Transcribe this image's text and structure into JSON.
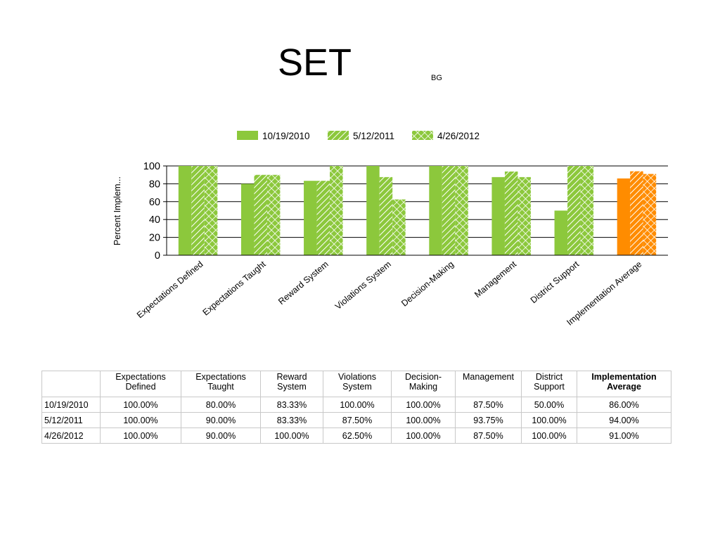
{
  "slide": {
    "title": "SET",
    "subtitle": "BG"
  },
  "chart_data": {
    "type": "bar",
    "ylabel": "Percent Implem...",
    "ylim": [
      0,
      100
    ],
    "yticks": [
      0,
      20,
      40,
      60,
      80,
      100
    ],
    "grid": true,
    "legend": "top",
    "categories": [
      "Expectations Defined",
      "Expectations Taught",
      "Reward System",
      "Violations System",
      "Decision-Making",
      "Management",
      "District Support",
      "Implementation Average"
    ],
    "series": [
      {
        "name": "10/19/2010",
        "values": [
          100,
          80,
          83.33,
          100,
          100,
          87.5,
          50,
          86
        ],
        "pattern": "solid"
      },
      {
        "name": "5/12/2011",
        "values": [
          100,
          90,
          83.33,
          87.5,
          100,
          93.75,
          100,
          94
        ],
        "pattern": "diagonal"
      },
      {
        "name": "4/26/2012",
        "values": [
          100,
          90,
          100,
          62.5,
          100,
          87.5,
          100,
          91
        ],
        "pattern": "crosshatch"
      }
    ],
    "colors": {
      "main": "#8cc83c",
      "highlight": "#ff8c00"
    },
    "highlight_category": "Implementation Average"
  },
  "table": {
    "headers": [
      {
        "l1": "Expectations",
        "l2": "Defined",
        "bold": false
      },
      {
        "l1": "Expectations",
        "l2": "Taught",
        "bold": false
      },
      {
        "l1": "Reward",
        "l2": "System",
        "bold": false
      },
      {
        "l1": "Violations",
        "l2": "System",
        "bold": false
      },
      {
        "l1": "Decision-",
        "l2": "Making",
        "bold": false
      },
      {
        "l1": "Management",
        "l2": "",
        "bold": false
      },
      {
        "l1": "District",
        "l2": "Support",
        "bold": false
      },
      {
        "l1": "Implementation",
        "l2": "Average",
        "bold": true
      }
    ],
    "rows": [
      {
        "label": "10/19/2010",
        "cells": [
          "100.00%",
          "80.00%",
          "83.33%",
          "100.00%",
          "100.00%",
          "87.50%",
          "50.00%",
          "86.00%"
        ]
      },
      {
        "label": "5/12/2011",
        "cells": [
          "100.00%",
          "90.00%",
          "83.33%",
          "87.50%",
          "100.00%",
          "93.75%",
          "100.00%",
          "94.00%"
        ]
      },
      {
        "label": "4/26/2012",
        "cells": [
          "100.00%",
          "90.00%",
          "100.00%",
          "62.50%",
          "100.00%",
          "87.50%",
          "100.00%",
          "91.00%"
        ]
      }
    ]
  }
}
